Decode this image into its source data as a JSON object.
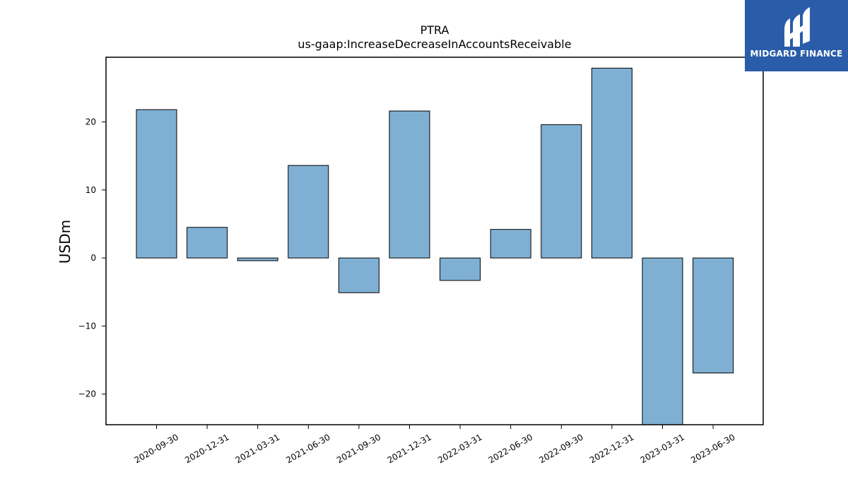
{
  "chart_data": {
    "type": "bar",
    "title": "PTRA",
    "subtitle": "us-gaap:IncreaseDecreaseInAccountsReceivable",
    "xlabel": "",
    "ylabel": "USDm",
    "categories": [
      "2020-09-30",
      "2020-12-31",
      "2021-03-31",
      "2021-06-30",
      "2021-09-30",
      "2021-12-31",
      "2022-03-31",
      "2022-06-30",
      "2022-09-30",
      "2022-12-31",
      "2023-03-31",
      "2023-06-30"
    ],
    "values": [
      21.8,
      4.5,
      -0.4,
      13.6,
      -5.1,
      21.6,
      -3.3,
      4.2,
      19.6,
      27.9,
      -24.8,
      -16.9
    ],
    "ylim": [
      -24.5,
      29.5
    ],
    "yticks": [
      -20,
      -10,
      0,
      10,
      20
    ],
    "bar_color": "#7fb0d4",
    "edge_color": "#000000",
    "grid": false,
    "legend": false
  },
  "logo": {
    "text": "MIDGARD FINANCE",
    "bg_color": "#2a5caa"
  }
}
